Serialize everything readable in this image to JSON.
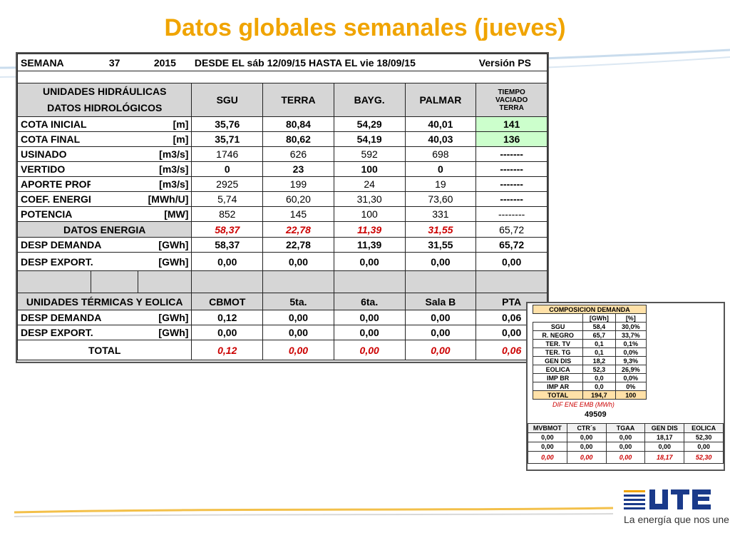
{
  "title": "Datos globales semanales  (jueves)",
  "header": {
    "semana_label": "SEMANA",
    "semana": "37",
    "year": "2015",
    "range": "DESDE EL sáb 12/09/15  HASTA EL  vie 18/09/15",
    "version": "Versión   PS"
  },
  "hydro": {
    "label1": "UNIDADES HIDRÁULICAS",
    "label2": "DATOS HIDROLÓGICOS",
    "cols": [
      "SGU",
      "TERRA",
      "BAYG.",
      "PALMAR"
    ],
    "tiempo": [
      "TIEMPO",
      "VACIADO",
      "TERRA"
    ],
    "rows": [
      {
        "label": "COTA INICIAL",
        "unit": "[m]",
        "vals": [
          "35,76",
          "80,84",
          "54,29",
          "40,01"
        ],
        "last": "141"
      },
      {
        "label": "COTA FINAL",
        "unit": "[m]",
        "vals": [
          "35,71",
          "80,62",
          "54,19",
          "40,03"
        ],
        "last": "136"
      },
      {
        "label": "USINADO",
        "unit": "[m3/s]",
        "vals": [
          "1746",
          "626",
          "592",
          "698"
        ],
        "last": "-------"
      },
      {
        "label": "VERTIDO",
        "unit": "[m3/s]",
        "vals": [
          "0",
          "23",
          "100",
          "0"
        ],
        "last": "-------"
      },
      {
        "label": "APORTE PROPIO",
        "unit": "[m3/s]",
        "vals": [
          "2925",
          "199",
          "24",
          "19"
        ],
        "last": "-------"
      },
      {
        "label": "COEF. ENERGETICO",
        "unit": "[MWh/U]",
        "vals": [
          "5,74",
          "60,20",
          "31,30",
          "73,60"
        ],
        "last": "-------"
      },
      {
        "label": "POTENCIA",
        "unit": "[MW]",
        "vals": [
          "852",
          "145",
          "100",
          "331"
        ],
        "last": "--------"
      }
    ]
  },
  "energia": {
    "label": "DATOS ENERGIA",
    "vals": [
      "58,37",
      "22,78",
      "11,39",
      "31,55",
      "65,72"
    ],
    "desp_demanda": {
      "label": "DESP DEMANDA",
      "unit": "[GWh]",
      "vals": [
        "58,37",
        "22,78",
        "11,39",
        "31,55",
        "65,72"
      ]
    },
    "desp_export": {
      "label": "DESP EXPORT.",
      "unit": "[GWh]",
      "vals": [
        "0,00",
        "0,00",
        "0,00",
        "0,00",
        "0,00"
      ]
    }
  },
  "termicas": {
    "label": "UNIDADES TÉRMICAS Y EOLICA",
    "cols": [
      "CBMOT",
      "5ta.",
      "6ta.",
      "Sala B",
      "PTA"
    ],
    "desp_demanda": {
      "label": "DESP DEMANDA",
      "unit": "[GWh]",
      "vals": [
        "0,12",
        "0,00",
        "0,00",
        "0,00",
        "0,06"
      ]
    },
    "desp_export": {
      "label": "DESP EXPORT.",
      "unit": "[GWh]",
      "vals": [
        "0,00",
        "0,00",
        "0,00",
        "0,00",
        "0,00"
      ]
    },
    "total": {
      "label": "TOTAL",
      "vals": [
        "0,12",
        "0,00",
        "0,00",
        "0,00",
        "0,06"
      ]
    }
  },
  "composicion": {
    "title": "COMPOSICION DEMANDA",
    "units": [
      "[GWh]",
      "[%]"
    ],
    "rows": [
      {
        "label": "SGU",
        "gwh": "58,4",
        "pct": "30,0%"
      },
      {
        "label": "R. NEGRO",
        "gwh": "65,7",
        "pct": "33,7%"
      },
      {
        "label": "TER. TV",
        "gwh": "0,1",
        "pct": "0,1%"
      },
      {
        "label": "TER. TG",
        "gwh": "0,1",
        "pct": "0,0%"
      },
      {
        "label": "GEN DIS",
        "gwh": "18,2",
        "pct": "9,3%"
      },
      {
        "label": "EOLICA",
        "gwh": "52,3",
        "pct": "26,9%"
      },
      {
        "label": "IMP BR",
        "gwh": "0,0",
        "pct": "0,0%"
      },
      {
        "label": "IMP AR",
        "gwh": "0,0",
        "pct": "0%"
      },
      {
        "label": "TOTAL",
        "gwh": "194,7",
        "pct": "100"
      }
    ],
    "dif_label": "DIF ENE EMB (MWh)",
    "dif_value": "49509",
    "bottom_cols": [
      "MVBMOT",
      "CTR´s",
      "TGAA",
      "GEN DIS",
      "EOLICA"
    ],
    "bottom_rows": [
      [
        "0,00",
        "0,00",
        "0,00",
        "18,17",
        "52,30"
      ],
      [
        "0,00",
        "0,00",
        "0,00",
        "0,00",
        "0,00"
      ]
    ],
    "bottom_total": [
      "0,00",
      "0,00",
      "0,00",
      "18,17",
      "52,30"
    ]
  },
  "brand": {
    "tagline": "La energía que nos une",
    "accent": "#f0a400",
    "logo_blue": "#1a3a8a"
  }
}
